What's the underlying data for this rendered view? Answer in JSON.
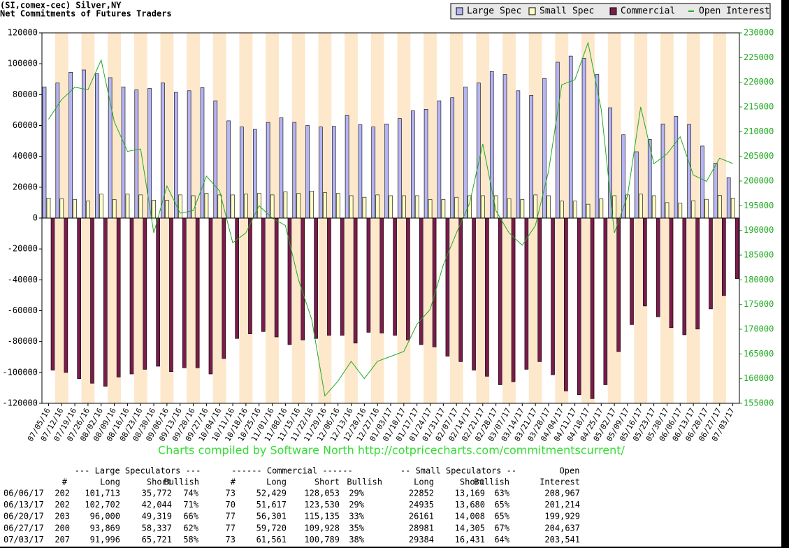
{
  "chart_data": {
    "type": "bar",
    "title": "(SI,comex-cec) Silver,NY",
    "subtitle": "Net Commitments of Futures Traders",
    "annotation": "Charts compiled by Software North  http://cotpricecharts.com/commitmentscurrent/",
    "categories": [
      "07/05/16",
      "07/12/16",
      "07/19/16",
      "07/26/16",
      "08/02/16",
      "08/09/16",
      "08/16/16",
      "08/23/16",
      "08/30/16",
      "09/06/16",
      "09/13/16",
      "09/20/16",
      "09/27/16",
      "10/04/16",
      "10/11/16",
      "10/18/16",
      "10/25/16",
      "11/01/16",
      "11/08/16",
      "11/15/16",
      "11/22/16",
      "11/29/16",
      "12/06/16",
      "12/13/16",
      "12/20/16",
      "12/27/16",
      "01/03/17",
      "01/10/17",
      "01/17/17",
      "01/24/17",
      "01/31/17",
      "02/07/17",
      "02/14/17",
      "02/21/17",
      "02/28/17",
      "03/07/17",
      "03/14/17",
      "03/21/17",
      "03/28/17",
      "04/04/17",
      "04/11/17",
      "04/18/17",
      "04/25/17",
      "05/02/17",
      "05/09/17",
      "05/16/17",
      "05/23/17",
      "05/30/17",
      "06/06/17",
      "06/13/17",
      "06/20/17",
      "06/27/17",
      "07/03/17"
    ],
    "series": [
      {
        "name": "Large Spec",
        "color": "#b4b4f4",
        "values": [
          85000,
          87500,
          94500,
          96000,
          93500,
          91000,
          85000,
          83000,
          84000,
          87500,
          81500,
          82500,
          84500,
          76000,
          63000,
          59000,
          57500,
          62000,
          65000,
          62000,
          60000,
          59000,
          59500,
          66500,
          60500,
          59000,
          61000,
          64500,
          69500,
          70500,
          76000,
          78000,
          85000,
          87500,
          95000,
          93000,
          82500,
          79500,
          90500,
          101000,
          105000,
          103500,
          93000,
          71500,
          54000,
          43000,
          51000,
          61000,
          65941,
          60658,
          46681,
          35532,
          26275
        ]
      },
      {
        "name": "Small Spec",
        "color": "#ffffc4",
        "values": [
          13000,
          12500,
          12000,
          11000,
          15500,
          12000,
          15500,
          15000,
          11500,
          11500,
          15000,
          14500,
          16000,
          15000,
          15000,
          15500,
          16000,
          15000,
          17000,
          16000,
          17500,
          16500,
          16000,
          14500,
          13500,
          15000,
          14500,
          14500,
          14500,
          12000,
          12000,
          13500,
          14500,
          14500,
          14500,
          12500,
          12000,
          15000,
          14500,
          11000,
          11000,
          9000,
          12500,
          14500,
          15000,
          15500,
          14500,
          10000,
          9683,
          11255,
          12153,
          14676,
          12953
        ]
      },
      {
        "name": "Commercial",
        "color": "#7a1c4c",
        "values": [
          -98500,
          -100000,
          -104000,
          -107000,
          -109000,
          -103000,
          -101000,
          -98000,
          -96000,
          -99500,
          -97000,
          -97000,
          -101000,
          -91000,
          -78000,
          -75000,
          -73500,
          -77000,
          -82000,
          -79000,
          -78000,
          -76000,
          -76000,
          -81000,
          -74000,
          -74500,
          -76000,
          -79000,
          -82000,
          -83500,
          -89500,
          -93000,
          -98500,
          -102500,
          -108000,
          -106000,
          -98000,
          -93000,
          -101500,
          -112000,
          -114500,
          -117000,
          -108000,
          -86500,
          -69000,
          -57000,
          -64000,
          -71000,
          -75624,
          -71913,
          -58834,
          -50208,
          -39228
        ]
      },
      {
        "name": "Open Interest",
        "color": "#22aa22",
        "axis": "y2",
        "values": [
          212500,
          216500,
          219000,
          218500,
          224500,
          212000,
          206000,
          206500,
          189500,
          199000,
          193500,
          194000,
          201000,
          198000,
          187500,
          189500,
          195000,
          192500,
          191000,
          180000,
          172000,
          156500,
          159500,
          163500,
          160000,
          163500,
          164500,
          165500,
          171000,
          174000,
          183000,
          189500,
          195500,
          207500,
          194000,
          189500,
          187000,
          191000,
          202000,
          219500,
          220500,
          228000,
          214500,
          189500,
          197000,
          215000,
          203500,
          205500,
          208967,
          201214,
          199929,
          204637,
          203541
        ]
      }
    ],
    "ylim": [
      -120000,
      120000
    ],
    "yticks": [
      -120000,
      -100000,
      -80000,
      -60000,
      -40000,
      -20000,
      0,
      20000,
      40000,
      60000,
      80000,
      100000,
      120000
    ],
    "y2lim": [
      155000,
      230000
    ],
    "y2ticks": [
      155000,
      160000,
      165000,
      170000,
      175000,
      180000,
      185000,
      190000,
      195000,
      200000,
      205000,
      210000,
      215000,
      220000,
      225000,
      230000
    ],
    "stripe_color": "#fde8cc",
    "legend": "top-right"
  },
  "table": {
    "group_headers": [
      "--- Large Speculators ---",
      "------ Commercial ------",
      "-- Small Speculators --",
      "Open"
    ],
    "headers": [
      "#",
      "Long",
      "Short",
      "Bullish",
      "#",
      "Long",
      "Short",
      "Bullish",
      "Long",
      "Short",
      "Bullish",
      "Interest"
    ],
    "rows": [
      [
        "06/06/17",
        "202",
        "101,713",
        "35,772",
        "74%",
        "73",
        "52,429",
        "128,053",
        "29%",
        "22852",
        "13,169",
        "63%",
        "208,967"
      ],
      [
        "06/13/17",
        "202",
        "102,702",
        "42,044",
        "71%",
        "70",
        "51,617",
        "123,530",
        "29%",
        "24935",
        "13,680",
        "65%",
        "201,214"
      ],
      [
        "06/20/17",
        "203",
        "96,000",
        "49,319",
        "66%",
        "77",
        "56,301",
        "115,135",
        "33%",
        "26161",
        "14,008",
        "65%",
        "199,929"
      ],
      [
        "06/27/17",
        "200",
        "93,869",
        "58,337",
        "62%",
        "77",
        "59,720",
        "109,928",
        "35%",
        "28981",
        "14,305",
        "67%",
        "204,637"
      ],
      [
        "07/03/17",
        "207",
        "91,996",
        "65,721",
        "58%",
        "73",
        "61,561",
        "100,789",
        "38%",
        "29384",
        "16,431",
        "64%",
        "203,541"
      ]
    ]
  }
}
